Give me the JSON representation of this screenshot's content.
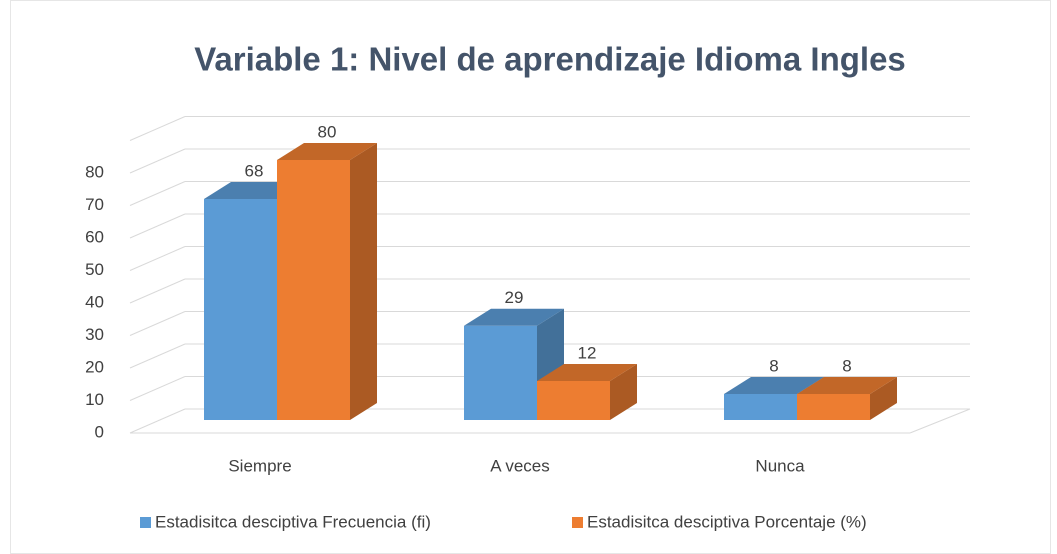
{
  "chart_data": {
    "type": "bar3d",
    "title": "Variable  1: Nivel de aprendizaje  Idioma Ingles",
    "categories": [
      "Siempre",
      "A veces",
      "Nunca"
    ],
    "series": [
      {
        "name": "Estadisitca desciptiva Frecuencia (fi)",
        "color": "#5b9bd5",
        "values": [
          68,
          29,
          8
        ]
      },
      {
        "name": "Estadisitca desciptiva Porcentaje (%)",
        "color": "#ed7d31",
        "values": [
          80,
          12,
          8
        ]
      }
    ],
    "ylim": [
      0,
      90
    ],
    "yticks": [
      0,
      10,
      20,
      30,
      40,
      50,
      60,
      70,
      80
    ],
    "grid": true,
    "legend": "bottom"
  }
}
